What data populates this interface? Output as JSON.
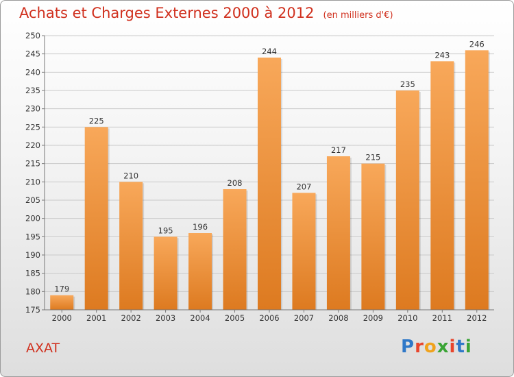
{
  "title": "Achats et Charges Externes 2000 à 2012",
  "unit": "(en milliers d'€)",
  "commune": "AXAT",
  "logo": {
    "letters": [
      "P",
      "r",
      "o",
      "x",
      "i",
      "t",
      "i"
    ],
    "colors": [
      "#2f78c8",
      "#e8452c",
      "#f0a21c",
      "#3aa435",
      "#e8452c",
      "#2f78c8",
      "#3aa435"
    ]
  },
  "chart_data": {
    "type": "bar",
    "categories": [
      "2000",
      "2001",
      "2002",
      "2003",
      "2004",
      "2005",
      "2006",
      "2007",
      "2008",
      "2009",
      "2010",
      "2011",
      "2012"
    ],
    "values": [
      179,
      225,
      210,
      195,
      196,
      208,
      244,
      207,
      217,
      215,
      235,
      243,
      246
    ],
    "ylim": [
      175,
      250
    ],
    "yticks": [
      175,
      180,
      185,
      190,
      195,
      200,
      205,
      210,
      215,
      220,
      225,
      230,
      235,
      240,
      245,
      250
    ],
    "grid": true,
    "bar_color": "#f08e30"
  }
}
